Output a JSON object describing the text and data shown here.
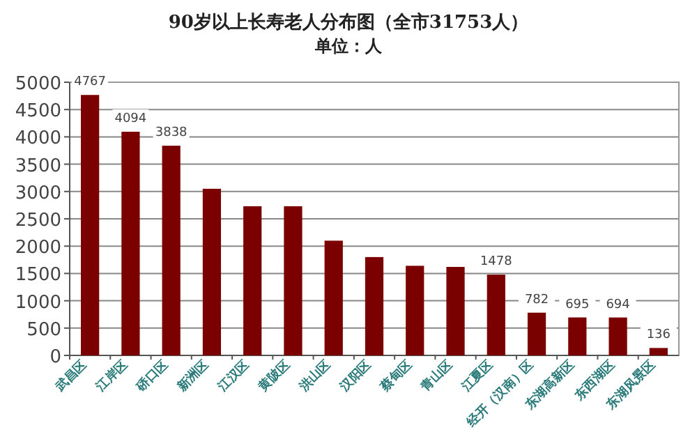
{
  "chart_data": {
    "type": "bar",
    "title": "90岁以上长寿老人分布图（全市31753人）",
    "subtitle": "单位：人",
    "categories": [
      "武昌区",
      "江岸区",
      "硚口区",
      "新洲区",
      "江汉区",
      "黄陂区",
      "洪山区",
      "汉阳区",
      "蔡甸区",
      "青山区",
      "江夏区",
      "经开（汉南）区",
      "东湖高新区",
      "东西湖区",
      "东湖风景区"
    ],
    "values": [
      4767,
      4094,
      3838,
      3050,
      2730,
      2730,
      2100,
      1800,
      1640,
      1620,
      1478,
      782,
      695,
      694,
      136
    ],
    "value_labels": [
      "4767",
      "4094",
      "3838",
      null,
      null,
      null,
      null,
      null,
      null,
      null,
      "1478",
      "782",
      "695",
      "694",
      "136"
    ],
    "color": "#7b0000",
    "ylim": [
      0,
      5000
    ],
    "yticks": [
      0,
      500,
      1000,
      1500,
      2000,
      2500,
      3000,
      3500,
      4000,
      4500,
      5000
    ],
    "grid": "y"
  }
}
